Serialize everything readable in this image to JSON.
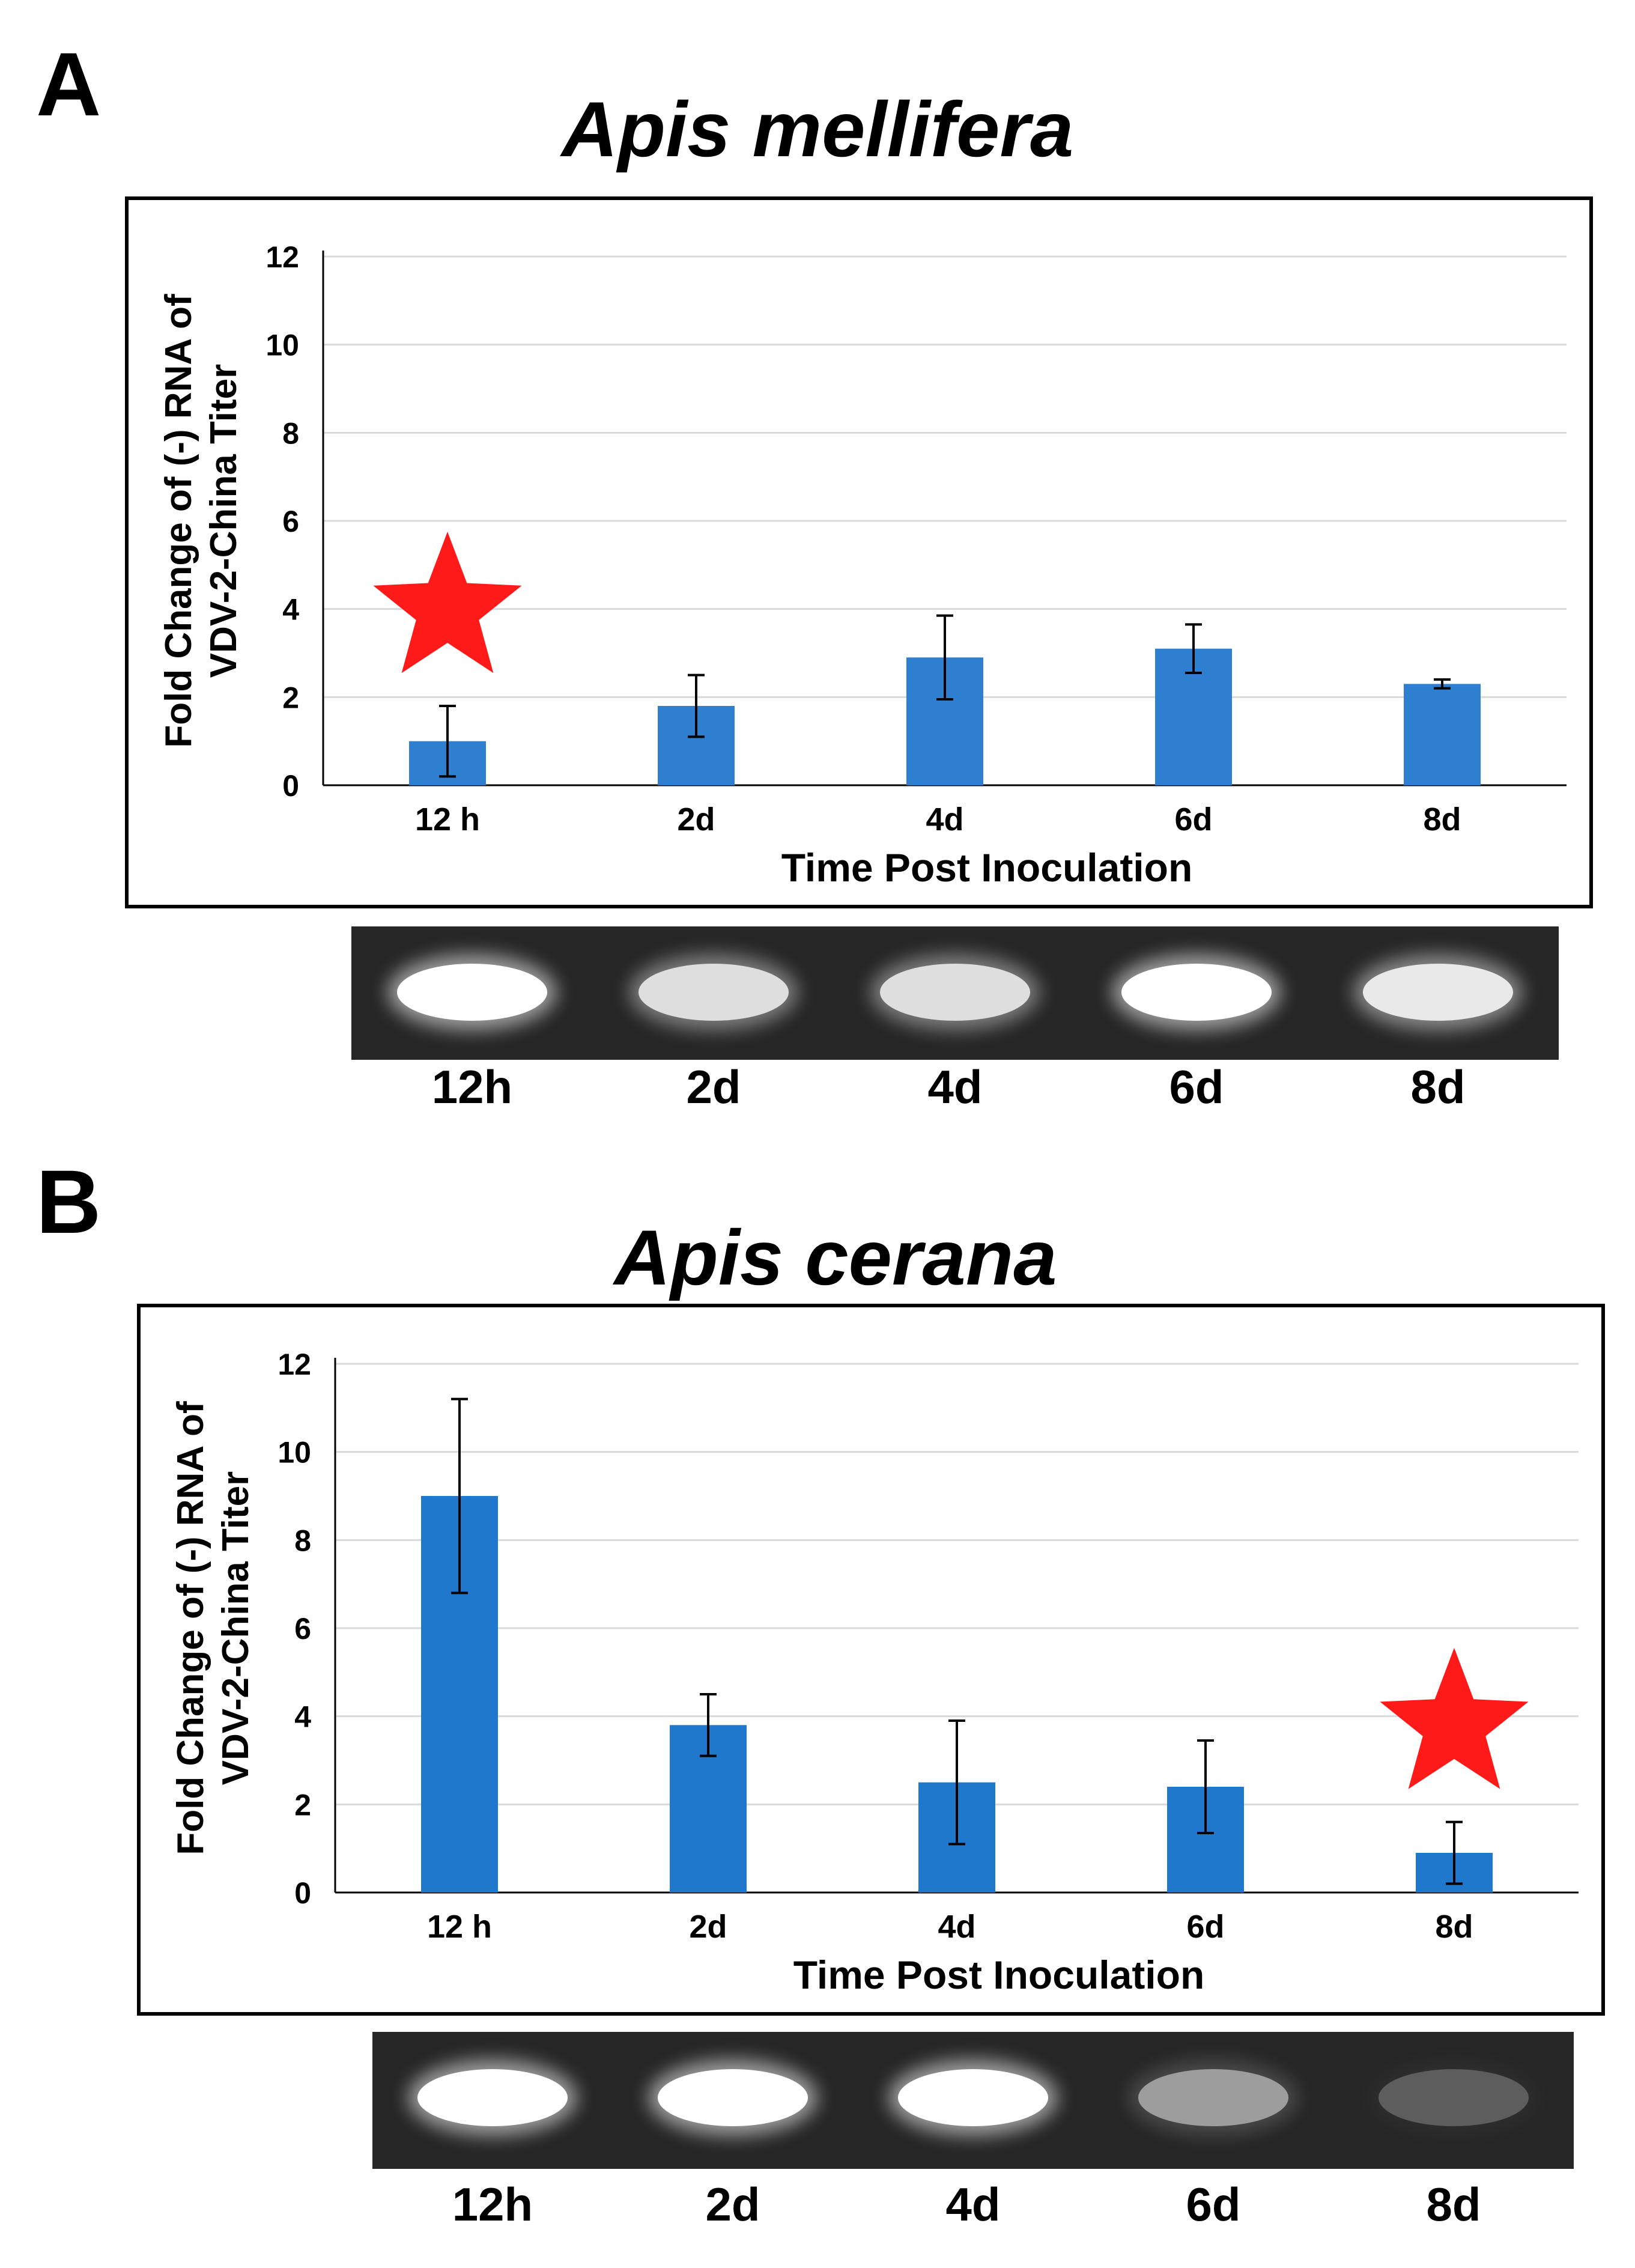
{
  "panels": [
    {
      "letter": "A",
      "species": "Apis mellifera",
      "gel_lanes": [
        "12h",
        "2d",
        "4d",
        "6d",
        "8d"
      ],
      "gel_band_intensity": [
        1.0,
        0.85,
        0.85,
        1.0,
        0.9
      ]
    },
    {
      "letter": "B",
      "species": "Apis cerana",
      "gel_lanes": [
        "12h",
        "2d",
        "4d",
        "6d",
        "8d"
      ],
      "gel_band_intensity": [
        1.0,
        1.0,
        1.0,
        0.55,
        0.25
      ]
    }
  ],
  "colors": {
    "bar": "#2f7fd0",
    "bar_b": "#1f78cc",
    "star": "#ff1a1a",
    "grid": "#d9d9d9",
    "gel_bg": "#262626",
    "band": "#ffffff"
  },
  "chart_data": [
    {
      "type": "bar",
      "title": "Apis mellifera",
      "categories": [
        "12 h",
        "2d",
        "4d",
        "6d",
        "8d"
      ],
      "values": [
        1.0,
        1.8,
        2.9,
        3.1,
        2.3
      ],
      "errors": [
        0.8,
        0.7,
        0.95,
        0.55,
        0.1
      ],
      "xlabel": "Time Post Inoculation",
      "ylabel_line1": "Fold Change of (-) RNA of",
      "ylabel_line2": "VDV-2-China Titer",
      "ylim": [
        0,
        12
      ],
      "yticks": [
        0,
        2,
        4,
        6,
        8,
        10,
        12
      ],
      "grid": true,
      "star_category_index": 0
    },
    {
      "type": "bar",
      "title": "Apis cerana",
      "categories": [
        "12 h",
        "2d",
        "4d",
        "6d",
        "8d"
      ],
      "values": [
        9.0,
        3.8,
        2.5,
        2.4,
        0.9
      ],
      "errors": [
        2.2,
        0.7,
        1.4,
        1.05,
        0.7
      ],
      "xlabel": "Time Post Inoculation",
      "ylabel_line1": "Fold Change of (-) RNA of",
      "ylabel_line2": "VDV-2-China Titer",
      "ylim": [
        0,
        12
      ],
      "yticks": [
        0,
        2,
        4,
        6,
        8,
        10,
        12
      ],
      "grid": true,
      "star_category_index": 4
    }
  ]
}
